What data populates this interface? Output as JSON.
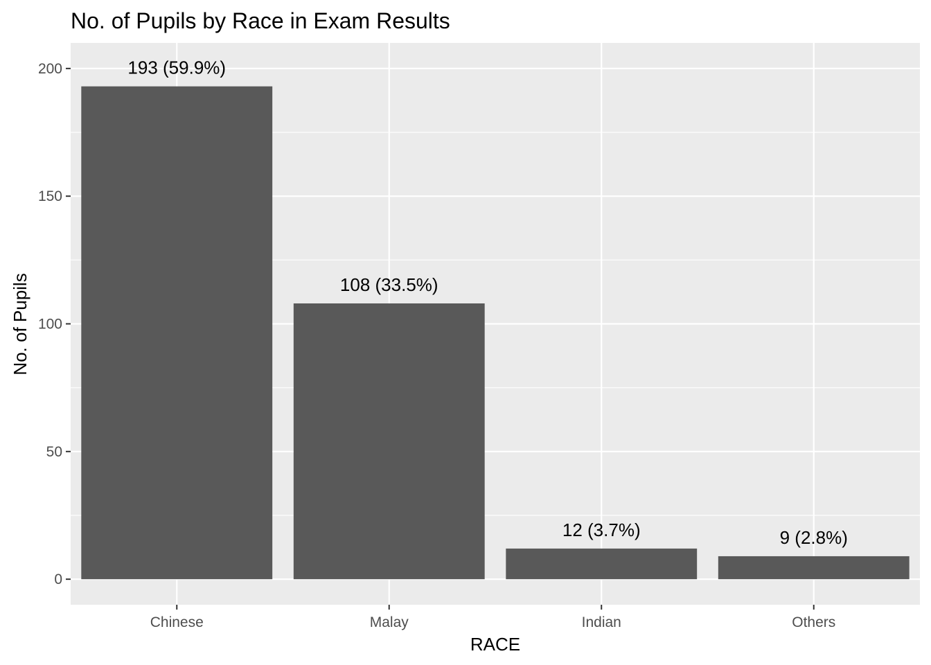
{
  "chart_data": {
    "type": "bar",
    "title": "No. of Pupils by Race in Exam Results",
    "xlabel": "RACE",
    "ylabel": "No. of Pupils",
    "categories": [
      "Chinese",
      "Malay",
      "Indian",
      "Others"
    ],
    "values": [
      193,
      108,
      12,
      9
    ],
    "data_labels": [
      "193 (59.9%)",
      "108 (33.5%)",
      "12 (3.7%)",
      "9 (2.8%)"
    ],
    "ylim": [
      -10,
      210
    ],
    "yticks": [
      0,
      50,
      100,
      150,
      200
    ],
    "ytick_labels": [
      "0",
      "50",
      "100",
      "150",
      "200"
    ],
    "grid": true,
    "legend": "none",
    "colors": {
      "bar": "#595959",
      "panel": "#ebebeb",
      "grid": "#ffffff",
      "tick_text": "#4d4d4d",
      "tick_mark": "#333333"
    }
  }
}
